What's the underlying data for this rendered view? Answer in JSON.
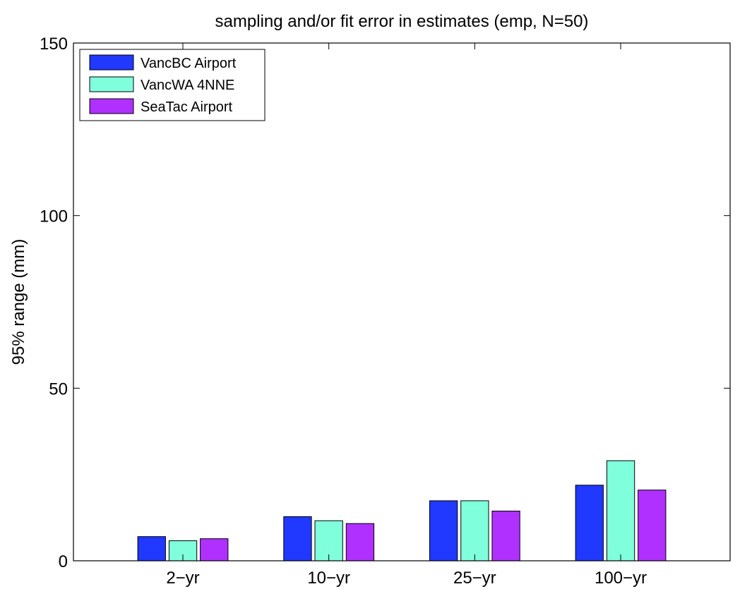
{
  "chart_data": {
    "type": "bar",
    "title": "sampling and/or fit error in estimates (emp, N=50)",
    "xlabel": "",
    "ylabel": "95% range (mm)",
    "ylim": [
      0,
      150
    ],
    "yticks": [
      "0",
      "50",
      "100",
      "150"
    ],
    "categories": [
      "2−yr",
      "10−yr",
      "25−yr",
      "100−yr"
    ],
    "series": [
      {
        "name": "VancBC Airport",
        "color": "#2038ff",
        "values": [
          7.0,
          12.8,
          17.4,
          21.9
        ]
      },
      {
        "name": "VancWA 4NNE",
        "color": "#7fffdc",
        "values": [
          5.8,
          11.6,
          17.4,
          29.0
        ]
      },
      {
        "name": "SeaTac Airport",
        "color": "#b030ff",
        "values": [
          6.4,
          10.8,
          14.4,
          20.5
        ]
      }
    ],
    "legend_position": "top-left",
    "grid": false
  }
}
